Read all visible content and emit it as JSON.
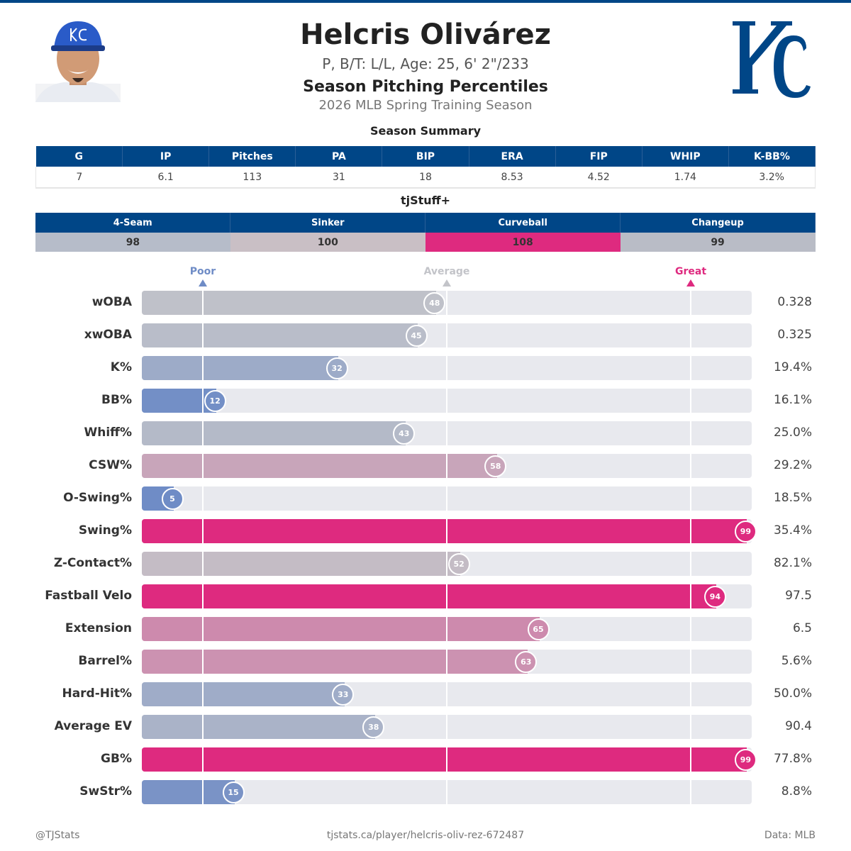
{
  "header": {
    "name": "Helcris Olivárez",
    "bio": "P, B/T: L/L, Age: 25, 6' 2\"/233",
    "heading": "Season Pitching Percentiles",
    "season": "2026 MLB Spring Training Season",
    "logo_text": "KC"
  },
  "summary": {
    "title": "Season Summary",
    "columns": [
      "G",
      "IP",
      "Pitches",
      "PA",
      "BIP",
      "ERA",
      "FIP",
      "WHIP",
      "K-BB%"
    ],
    "values": [
      "7",
      "6.1",
      "113",
      "31",
      "18",
      "8.53",
      "4.52",
      "1.74",
      "3.2%"
    ]
  },
  "tjstuff": {
    "title": "tjStuff+",
    "columns": [
      "4-Seam",
      "Sinker",
      "Curveball",
      "Changeup"
    ],
    "values": [
      "98",
      "100",
      "108",
      "99"
    ],
    "colors": [
      "#b6bcc9",
      "#c9bfc5",
      "#de2a7f",
      "#b9bcc6"
    ]
  },
  "chart_data": {
    "type": "bar",
    "orientation": "horizontal",
    "xlim": [
      0,
      100
    ],
    "markers": [
      {
        "label": "Poor",
        "at": 10,
        "color": "#6f8cc6"
      },
      {
        "label": "Average",
        "at": 50,
        "color": "#c3c4c9"
      },
      {
        "label": "Great",
        "at": 90,
        "color": "#de2a7f"
      }
    ],
    "categories": [
      "wOBA",
      "xwOBA",
      "K%",
      "BB%",
      "Whiff%",
      "CSW%",
      "O-Swing%",
      "Swing%",
      "Z-Contact%",
      "Fastball Velo",
      "Extension",
      "Barrel%",
      "Hard-Hit%",
      "Average EV",
      "GB%",
      "SwStr%"
    ],
    "percentiles": [
      48,
      45,
      32,
      12,
      43,
      58,
      5,
      99,
      52,
      94,
      65,
      63,
      33,
      38,
      99,
      15
    ],
    "stat_values": [
      "0.328",
      "0.325",
      "19.4%",
      "16.1%",
      "25.0%",
      "29.2%",
      "18.5%",
      "35.4%",
      "82.1%",
      "97.5",
      "6.5",
      "5.6%",
      "50.0%",
      "90.4",
      "77.8%",
      "8.8%"
    ],
    "color_scale": {
      "low": "#6f8cc6",
      "mid": "#c3c4c9",
      "high": "#de2a7f"
    }
  },
  "footer": {
    "left": "@TJStats",
    "center": "tjstats.ca/player/helcris-oliv-rez-672487",
    "right": "Data: MLB"
  }
}
